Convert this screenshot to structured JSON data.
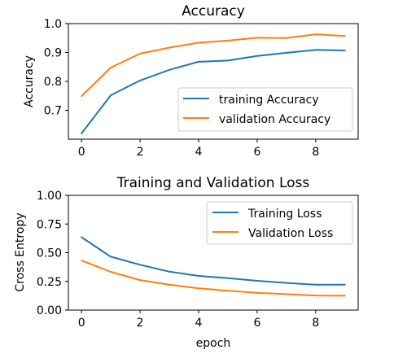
{
  "chart_data": [
    {
      "type": "line",
      "title": "Accuracy",
      "xlabel": "",
      "ylabel": "Accuracy",
      "xlim": [
        -0.45,
        9.45
      ],
      "ylim": [
        0.6,
        1.0
      ],
      "xticks": [
        0,
        2,
        4,
        6,
        8
      ],
      "xtick_labels": [
        "0",
        "2",
        "4",
        "6",
        "8"
      ],
      "yticks": [
        0.7,
        0.8,
        0.9,
        1.0
      ],
      "ytick_labels": [
        "0.7",
        "0.8",
        "0.9",
        "1.0"
      ],
      "grid": false,
      "legend_position": "lower-right",
      "x": [
        0,
        1,
        2,
        3,
        4,
        5,
        6,
        7,
        8,
        9
      ],
      "series": [
        {
          "name": "training Accuracy",
          "color": "#1f77b4",
          "values": [
            0.62,
            0.752,
            0.803,
            0.84,
            0.868,
            0.872,
            0.888,
            0.899,
            0.909,
            0.907
          ]
        },
        {
          "name": "validation Accuracy",
          "color": "#ff7f0e",
          "values": [
            0.749,
            0.848,
            0.896,
            0.917,
            0.934,
            0.941,
            0.951,
            0.95,
            0.963,
            0.957
          ]
        }
      ]
    },
    {
      "type": "line",
      "title": "Training and Validation Loss",
      "xlabel": "epoch",
      "ylabel": "Cross Entropy",
      "xlim": [
        -0.45,
        9.45
      ],
      "ylim": [
        0.0,
        1.0
      ],
      "xticks": [
        0,
        2,
        4,
        6,
        8
      ],
      "xtick_labels": [
        "0",
        "2",
        "4",
        "6",
        "8"
      ],
      "yticks": [
        0.0,
        0.25,
        0.5,
        0.75,
        1.0
      ],
      "ytick_labels": [
        "0.00",
        "0.25",
        "0.50",
        "0.75",
        "1.00"
      ],
      "grid": false,
      "legend_position": "upper-right",
      "x": [
        0,
        1,
        2,
        3,
        4,
        5,
        6,
        7,
        8,
        9
      ],
      "series": [
        {
          "name": "Training Loss",
          "color": "#1f77b4",
          "values": [
            0.635,
            0.465,
            0.395,
            0.335,
            0.298,
            0.278,
            0.255,
            0.237,
            0.221,
            0.222
          ]
        },
        {
          "name": "Validation Loss",
          "color": "#ff7f0e",
          "values": [
            0.432,
            0.333,
            0.262,
            0.222,
            0.19,
            0.168,
            0.151,
            0.139,
            0.127,
            0.125
          ]
        }
      ]
    }
  ]
}
